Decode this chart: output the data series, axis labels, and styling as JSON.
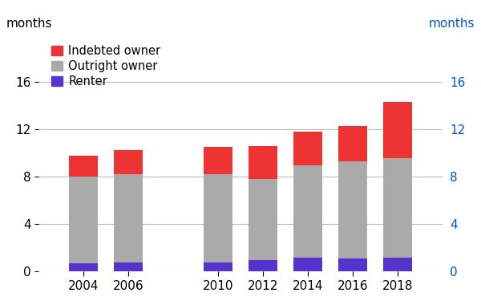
{
  "years": [
    2004,
    2006,
    2010,
    2012,
    2014,
    2016,
    2018
  ],
  "renter": [
    0.7,
    0.75,
    0.8,
    1.0,
    1.2,
    1.1,
    1.2
  ],
  "outright_owner": [
    7.3,
    7.5,
    7.4,
    6.8,
    7.8,
    8.2,
    8.4
  ],
  "indebted_owner": [
    1.8,
    2.0,
    2.3,
    2.8,
    2.8,
    3.0,
    4.7
  ],
  "renter_color": "#5533cc",
  "outright_color": "#aaaaaa",
  "indebted_color": "#ee3333",
  "ylabel_left": "months",
  "ylabel_right": "months",
  "ylim": [
    0,
    20
  ],
  "yticks": [
    0,
    4,
    8,
    12,
    16
  ],
  "legend_labels": [
    "Indebted owner",
    "Outright owner",
    "Renter"
  ],
  "bar_width": 1.3,
  "bg_color": "#ffffff",
  "grid_color": "#bbbbbb"
}
